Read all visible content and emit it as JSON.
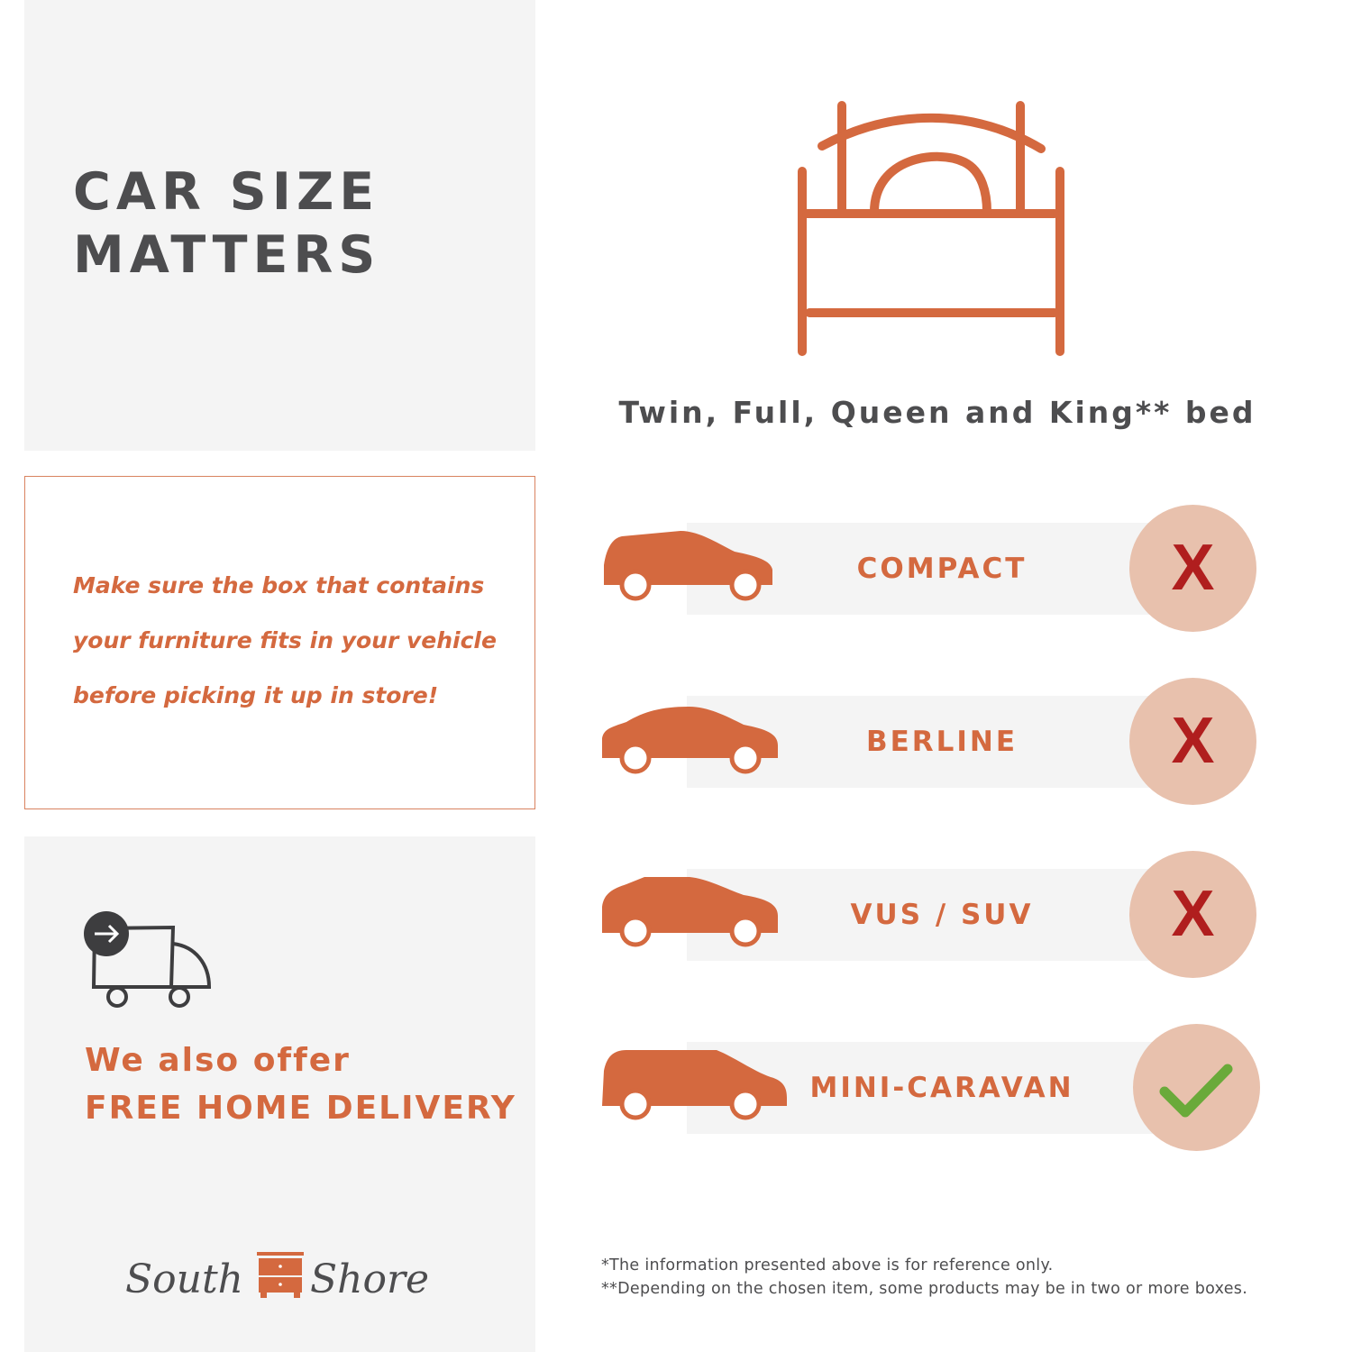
{
  "title_lines": [
    "CAR SIZE",
    "MATTERS"
  ],
  "note_lines": [
    "Make sure the box that contains",
    "your furniture fits in your vehicle",
    "before picking it up in store!"
  ],
  "offer": {
    "line1": "We also offer",
    "line2": "FREE HOME DELIVERY"
  },
  "logo": {
    "text": "South Shore",
    "left": "South",
    "right": "Shore"
  },
  "bed_caption": "Twin, Full, Queen and King** bed",
  "rows": [
    {
      "label": "COMPACT",
      "fits": false,
      "icon": "compact-car-icon",
      "mark": "X"
    },
    {
      "label": "BERLINE",
      "fits": false,
      "icon": "sedan-car-icon",
      "mark": "X"
    },
    {
      "label": "VUS / SUV",
      "fits": false,
      "icon": "suv-car-icon",
      "mark": "X"
    },
    {
      "label": "MINI-CARAVAN",
      "fits": true,
      "icon": "minivan-icon",
      "mark": "check"
    }
  ],
  "footnotes": [
    "*The information presented above is for reference only.",
    "**Depending on the chosen item, some products may be in two or more boxes."
  ],
  "colors": {
    "accent": "#d4693f",
    "panel": "#f4f4f4",
    "text": "#4d4d4f",
    "circle": "#e8c1ad",
    "no": "#b01e1e",
    "yes": "#6aaa3a"
  }
}
